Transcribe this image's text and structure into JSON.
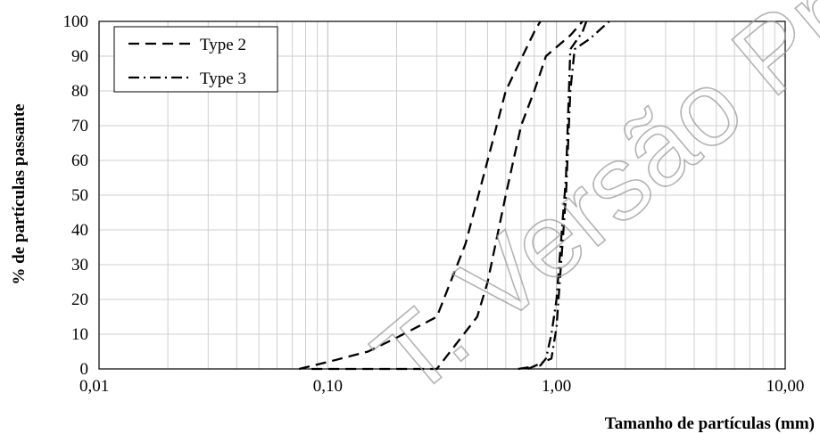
{
  "chart_data": {
    "type": "line",
    "xscale": "log",
    "xlim": [
      0.01,
      10
    ],
    "ylim": [
      0,
      100
    ],
    "xlabel": "Tamanho de partículas (mm)",
    "ylabel": "% de partículas passante",
    "x_ticks": [
      {
        "value": 0.01,
        "label": "0,01"
      },
      {
        "value": 0.1,
        "label": "0,10"
      },
      {
        "value": 1,
        "label": "1,00"
      },
      {
        "value": 10,
        "label": "10,00"
      }
    ],
    "y_ticks": [
      0,
      10,
      20,
      30,
      40,
      50,
      60,
      70,
      80,
      90,
      100
    ],
    "grid": true,
    "legend_position": "top-left",
    "series": [
      {
        "name": "Type 2",
        "style": "dashed",
        "color": "#000000",
        "points": [
          {
            "x": 0.075,
            "y": 0
          },
          {
            "x": 0.1,
            "y": 2
          },
          {
            "x": 0.15,
            "y": 5
          },
          {
            "x": 0.2,
            "y": 9
          },
          {
            "x": 0.3,
            "y": 15
          },
          {
            "x": 0.4,
            "y": 36
          },
          {
            "x": 0.5,
            "y": 60
          },
          {
            "x": 0.6,
            "y": 80
          },
          {
            "x": 0.8,
            "y": 97
          },
          {
            "x": 0.85,
            "y": 100
          }
        ]
      },
      {
        "name": "Type 2",
        "style": "dashed",
        "color": "#000000",
        "points": [
          {
            "x": 0.085,
            "y": 0
          },
          {
            "x": 0.3,
            "y": 0
          },
          {
            "x": 0.45,
            "y": 15
          },
          {
            "x": 0.5,
            "y": 25
          },
          {
            "x": 0.6,
            "y": 50
          },
          {
            "x": 0.7,
            "y": 70
          },
          {
            "x": 0.8,
            "y": 80
          },
          {
            "x": 0.9,
            "y": 90
          },
          {
            "x": 1.15,
            "y": 96
          },
          {
            "x": 1.3,
            "y": 100
          }
        ]
      },
      {
        "name": "Type 3",
        "style": "dash-dot",
        "color": "#000000",
        "points": [
          {
            "x": 0.68,
            "y": 0
          },
          {
            "x": 0.85,
            "y": 1
          },
          {
            "x": 0.9,
            "y": 3
          },
          {
            "x": 0.95,
            "y": 10
          },
          {
            "x": 1.0,
            "y": 20
          },
          {
            "x": 1.05,
            "y": 38
          },
          {
            "x": 1.1,
            "y": 55
          },
          {
            "x": 1.15,
            "y": 92
          },
          {
            "x": 1.3,
            "y": 97
          },
          {
            "x": 1.35,
            "y": 100
          }
        ]
      },
      {
        "name": "Type 3",
        "style": "dash-dot",
        "color": "#000000",
        "points": [
          {
            "x": 0.75,
            "y": 0
          },
          {
            "x": 0.95,
            "y": 3
          },
          {
            "x": 1.0,
            "y": 12
          },
          {
            "x": 1.1,
            "y": 50
          },
          {
            "x": 1.15,
            "y": 80
          },
          {
            "x": 1.2,
            "y": 92
          },
          {
            "x": 1.4,
            "y": 95
          },
          {
            "x": 1.7,
            "y": 100
          }
        ]
      }
    ],
    "legend": [
      {
        "label": "Type 2",
        "style": "dashed"
      },
      {
        "label": "Type 3",
        "style": "dash-dot"
      }
    ]
  },
  "watermark": {
    "text": "T. Versão Prelimi",
    "color": "#9a9a9a"
  }
}
